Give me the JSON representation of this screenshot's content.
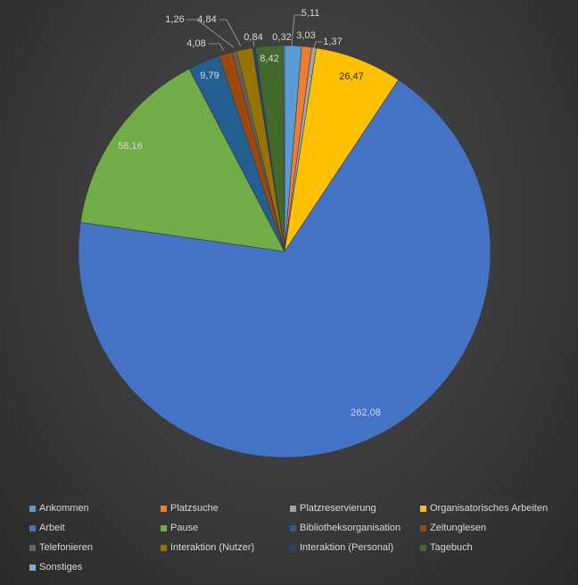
{
  "chart_data": {
    "type": "pie",
    "title": "",
    "categories": [
      "Ankommen",
      "Platzsuche",
      "Platzreservierung",
      "Organisatorisches Arbeiten",
      "Arbeit",
      "Pause",
      "Bibliotheksorganisation",
      "Zeitunglesen",
      "Telefonieren",
      "Interaktion (Nutzer)",
      "Interaktion (Personal)",
      "Tagebuch",
      "Sonstiges"
    ],
    "values": [
      5.11,
      3.03,
      1.37,
      26.47,
      262.08,
      58.16,
      9.79,
      4.08,
      1.26,
      4.84,
      0.84,
      8.42,
      0.32
    ],
    "labels": [
      "5,11",
      "3,03",
      "1,37",
      "26,47",
      "262,08",
      "58,16",
      "9,79",
      "4,08",
      "1,26",
      "4,84",
      "0,84",
      "8,42",
      "0,32"
    ],
    "colors": [
      "#5b9bd5",
      "#ed7d31",
      "#a5a5a5",
      "#ffc000",
      "#4472c4",
      "#70ad47",
      "#255e91",
      "#9e480e",
      "#636363",
      "#997300",
      "#264478",
      "#43682b",
      "#7cafdd"
    ],
    "legend_position": "bottom"
  }
}
